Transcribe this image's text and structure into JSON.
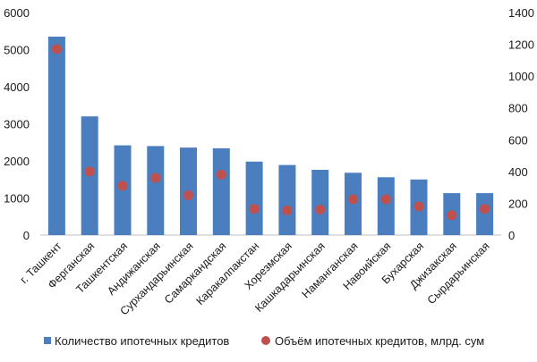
{
  "chart_data": {
    "type": "bar",
    "categories": [
      "г. Ташкент",
      "Ферганская",
      "Ташкентская",
      "Андижанская",
      "Сурхандарьинская",
      "Самаркандская",
      "Каракалпакстан",
      "Хорезмская",
      "Кашкадарьинская",
      "Наманганская",
      "Навоийская",
      "Бухарская",
      "Джизакская",
      "Сырдарьинская"
    ],
    "series": [
      {
        "name": "Количество ипотечных кредитов",
        "type": "bar",
        "axis": "left",
        "color": "#4a7ebf",
        "values": [
          5350,
          3200,
          2420,
          2400,
          2360,
          2340,
          1980,
          1890,
          1760,
          1680,
          1560,
          1500,
          1130,
          1130
        ]
      },
      {
        "name": "Объём ипотечных кредитов, млрд. сум",
        "type": "scatter",
        "axis": "right",
        "color": "#c0504d",
        "values": [
          1170,
          400,
          310,
          360,
          250,
          380,
          165,
          155,
          160,
          225,
          225,
          180,
          125,
          165
        ]
      }
    ],
    "y_left": {
      "min": 0,
      "max": 6000,
      "ticks": [
        "0",
        "1000",
        "2000",
        "3000",
        "4000",
        "5000",
        "6000"
      ]
    },
    "y_right": {
      "min": 0,
      "max": 1400,
      "ticks": [
        "0",
        "200",
        "400",
        "600",
        "800",
        "1000",
        "1200",
        "1400"
      ]
    },
    "grid": false,
    "legend_position": "bottom"
  }
}
